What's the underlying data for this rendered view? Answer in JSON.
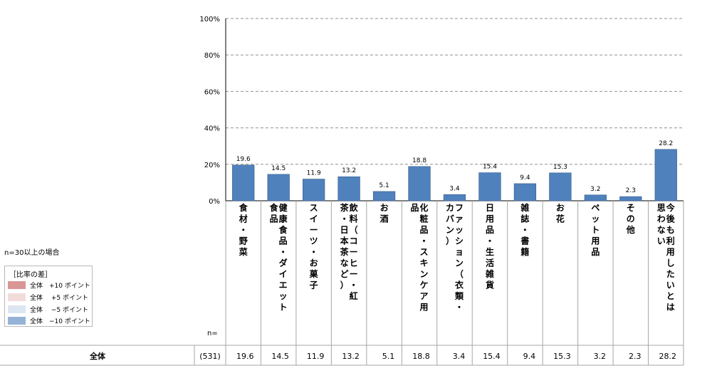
{
  "note": "n=30以上の場合",
  "n_label": "n=",
  "legend": {
    "title": "［比率の差］",
    "items": [
      {
        "label": "全体　+10 ポイント",
        "color": "#d99694"
      },
      {
        "label": "全体　 +5 ポイント",
        "color": "#f2dcdb"
      },
      {
        "label": "全体　 −5 ポイント",
        "color": "#dce6f1"
      },
      {
        "label": "全体　−10 ポイント",
        "color": "#95b3d7"
      }
    ]
  },
  "table": {
    "row_label": "全体",
    "n_value": "(531)",
    "values": [
      "19.6",
      "14.5",
      "11.9",
      "13.2",
      "5.1",
      "18.8",
      "3.4",
      "15.4",
      "9.4",
      "15.3",
      "3.2",
      "2.3",
      "28.2"
    ]
  },
  "colors": {
    "bar": "#4f81bd",
    "bar_stroke": "#385d8a",
    "grid": "#909090",
    "line": "#a6a6a6"
  },
  "chart_data": {
    "type": "bar",
    "ylim": [
      0,
      100
    ],
    "y_ticks": [
      "0%",
      "20%",
      "40%",
      "60%",
      "80%",
      "100%"
    ],
    "categories": [
      "食材・野菜",
      "健康食品・ダイエット食品",
      "スイーツ・お菓子",
      "飲料（コーヒー・紅茶・日本茶など）",
      "お酒",
      "化粧品・スキンケア用品",
      "ファッション（衣類・カバン）",
      "日用品・生活雑貨",
      "雑誌・書籍",
      "お花",
      "ペット用品",
      "その他",
      "今後も利用したいとは思わない"
    ],
    "category_columns": [
      [
        "食材・野菜"
      ],
      [
        "健康食品・ダイエット",
        "食品"
      ],
      [
        "スイーツ・お菓子"
      ],
      [
        "飲料（コーヒー・紅",
        "茶・日本茶など）"
      ],
      [
        "お酒"
      ],
      [
        "化粧品・スキンケア用",
        "品"
      ],
      [
        "ファッション（衣類・",
        "カバン）"
      ],
      [
        "日用品・生活雑貨"
      ],
      [
        "雑誌・書籍"
      ],
      [
        "お花"
      ],
      [
        "ペット用品"
      ],
      [
        "その他"
      ],
      [
        "今後も利用したいとは",
        "思わない"
      ]
    ],
    "values": [
      19.6,
      14.5,
      11.9,
      13.2,
      5.1,
      18.8,
      3.4,
      15.4,
      9.4,
      15.3,
      3.2,
      2.3,
      28.2
    ]
  }
}
